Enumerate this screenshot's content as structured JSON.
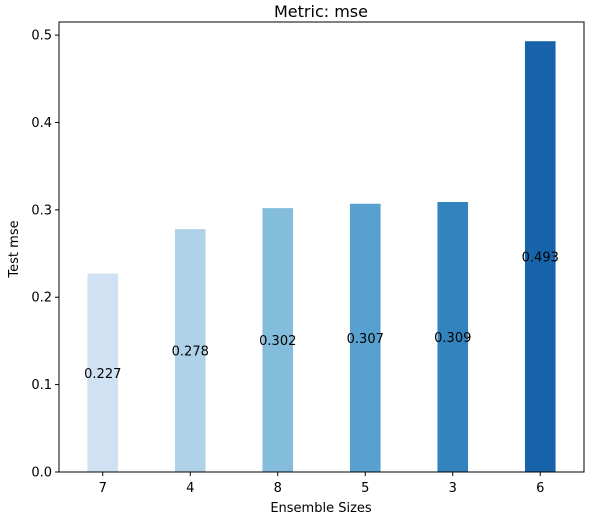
{
  "chart_data": {
    "type": "bar",
    "title": "Metric: mse",
    "xlabel": "Ensemble Sizes",
    "ylabel": "Test mse",
    "categories": [
      "7",
      "4",
      "8",
      "5",
      "3",
      "6"
    ],
    "values": [
      0.227,
      0.278,
      0.302,
      0.307,
      0.309,
      0.493
    ],
    "value_labels": [
      "0.227",
      "0.278",
      "0.302",
      "0.307",
      "0.309",
      "0.493"
    ],
    "bar_colors": [
      "#cfe1f2",
      "#b0d2e8",
      "#84bcdb",
      "#57a0cf",
      "#3383be",
      "#1764ab"
    ],
    "ylim": [
      0,
      0.515
    ],
    "yticks": [
      0.0,
      0.1,
      0.2,
      0.3,
      0.4,
      0.5
    ],
    "ytick_labels": [
      "0.0",
      "0.1",
      "0.2",
      "0.3",
      "0.4",
      "0.5"
    ],
    "grid": false,
    "legend": "none"
  }
}
